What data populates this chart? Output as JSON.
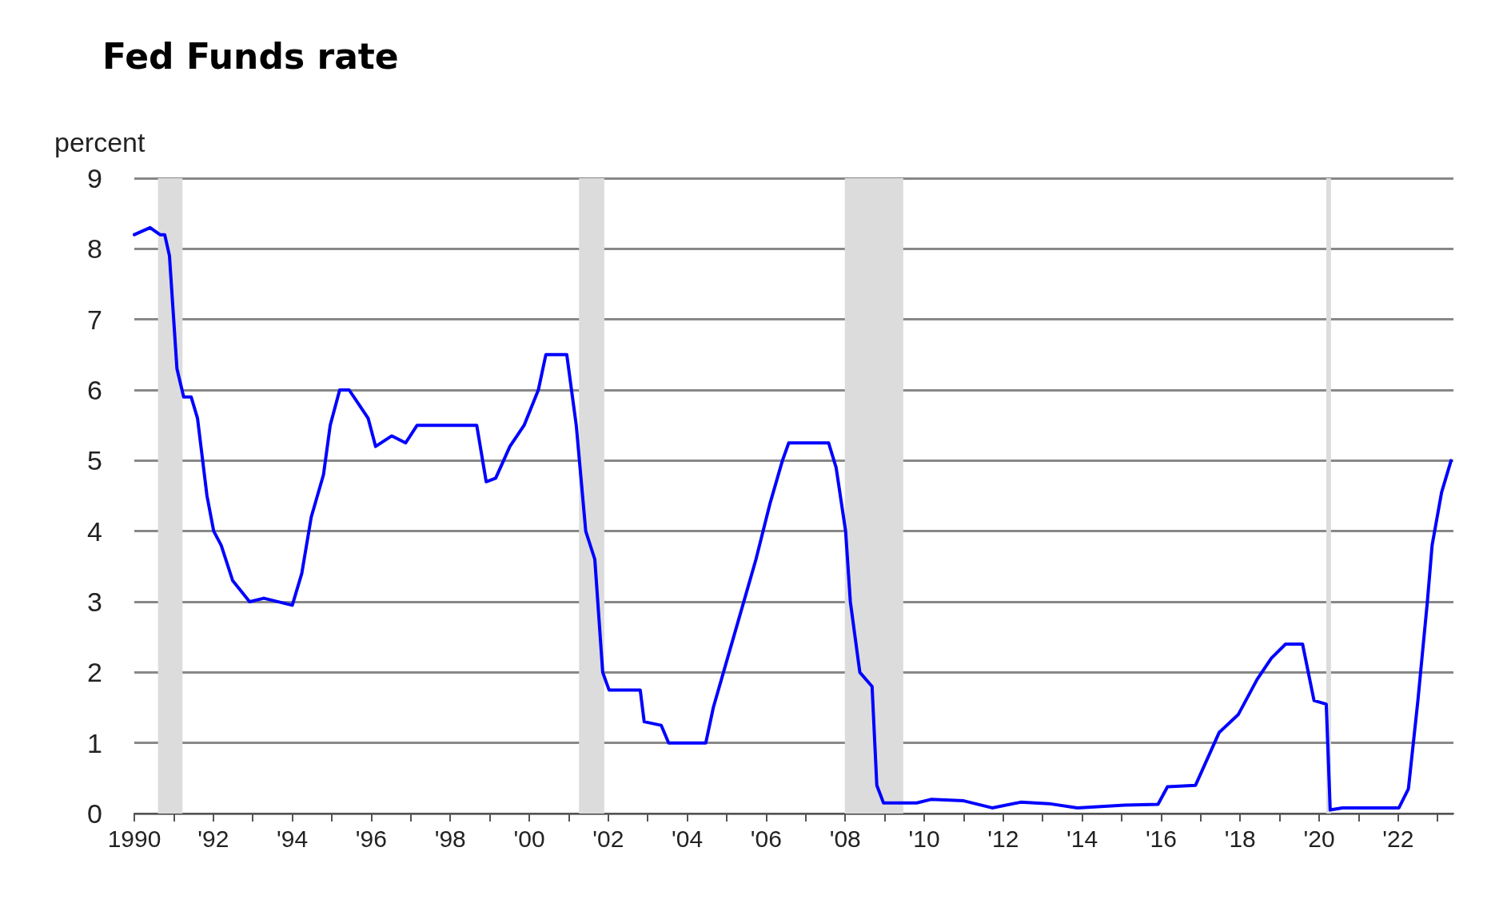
{
  "chart_data": {
    "type": "line",
    "title": "Fed Funds rate",
    "ylabel": "percent",
    "x": [
      1990.0,
      1990.4,
      1990.65,
      1990.77,
      1990.89,
      1991.08,
      1991.25,
      1991.44,
      1991.6,
      1991.84,
      1992.01,
      1992.2,
      1992.49,
      1992.92,
      1993.28,
      1994.0,
      1994.24,
      1994.48,
      1994.79,
      1994.96,
      1995.2,
      1995.44,
      1995.68,
      1995.92,
      1996.11,
      1996.52,
      1996.87,
      1997.16,
      1998.07,
      1998.67,
      1998.91,
      1999.15,
      1999.51,
      1999.87,
      2000.23,
      2000.42,
      2000.95,
      2001.19,
      2001.43,
      2001.66,
      2001.86,
      2002.02,
      2002.81,
      2002.91,
      2003.34,
      2003.53,
      2003.94,
      2004.47,
      2004.66,
      2005.02,
      2005.38,
      2005.74,
      2006.1,
      2006.41,
      2006.57,
      2007.58,
      2007.77,
      2008.01,
      2008.13,
      2008.37,
      2008.68,
      2008.8,
      2008.97,
      2009.81,
      2010.17,
      2011.0,
      2011.72,
      2012.44,
      2013.16,
      2013.88,
      2015.08,
      2015.92,
      2016.16,
      2016.87,
      2017.11,
      2017.47,
      2017.95,
      2018.43,
      2018.79,
      2019.15,
      2019.58,
      2019.87,
      2020.18,
      2020.28,
      2020.59,
      2022.02,
      2022.26,
      2022.5,
      2022.74,
      2022.86,
      2023.1,
      2023.34
    ],
    "series": [
      {
        "color": "#0000ff",
        "values": [
          8.2,
          8.3,
          8.2,
          8.2,
          7.9,
          6.3,
          5.9,
          5.9,
          5.6,
          4.5,
          4.0,
          3.8,
          3.3,
          3.0,
          3.05,
          2.95,
          3.4,
          4.2,
          4.8,
          5.5,
          6.0,
          6.0,
          5.8,
          5.6,
          5.2,
          5.35,
          5.25,
          5.5,
          5.5,
          5.5,
          4.7,
          4.75,
          5.2,
          5.5,
          6.0,
          6.5,
          6.5,
          5.5,
          4.0,
          3.6,
          2.0,
          1.75,
          1.75,
          1.3,
          1.25,
          1.0,
          1.0,
          1.0,
          1.5,
          2.2,
          2.9,
          3.6,
          4.4,
          5.0,
          5.25,
          5.25,
          4.9,
          4.0,
          3.0,
          2.0,
          1.8,
          0.4,
          0.15,
          0.15,
          0.2,
          0.18,
          0.08,
          0.16,
          0.14,
          0.08,
          0.12,
          0.13,
          0.38,
          0.4,
          0.7,
          1.15,
          1.4,
          1.9,
          2.2,
          2.4,
          2.4,
          1.6,
          1.55,
          0.05,
          0.08,
          0.08,
          0.35,
          1.6,
          3.0,
          3.8,
          4.55,
          5.0
        ]
      }
    ],
    "xlim": [
      1990,
      2023.4
    ],
    "xticks": [
      {
        "value": 1990,
        "label": "1990"
      },
      {
        "value": 1991,
        "label": null
      },
      {
        "value": 1992,
        "label": "'92"
      },
      {
        "value": 1993,
        "label": null
      },
      {
        "value": 1994,
        "label": "'94"
      },
      {
        "value": 1995,
        "label": null
      },
      {
        "value": 1996,
        "label": "'96"
      },
      {
        "value": 1997,
        "label": null
      },
      {
        "value": 1998,
        "label": "'98"
      },
      {
        "value": 1999,
        "label": null
      },
      {
        "value": 2000,
        "label": "'00"
      },
      {
        "value": 2001,
        "label": null
      },
      {
        "value": 2002,
        "label": "'02"
      },
      {
        "value": 2003,
        "label": null
      },
      {
        "value": 2004,
        "label": "'04"
      },
      {
        "value": 2005,
        "label": null
      },
      {
        "value": 2006,
        "label": "'06"
      },
      {
        "value": 2007,
        "label": null
      },
      {
        "value": 2008,
        "label": "'08"
      },
      {
        "value": 2009,
        "label": null
      },
      {
        "value": 2010,
        "label": "'10"
      },
      {
        "value": 2011,
        "label": null
      },
      {
        "value": 2012,
        "label": "'12"
      },
      {
        "value": 2013,
        "label": null
      },
      {
        "value": 2014,
        "label": "'14"
      },
      {
        "value": 2015,
        "label": null
      },
      {
        "value": 2016,
        "label": "'16"
      },
      {
        "value": 2017,
        "label": null
      },
      {
        "value": 2018,
        "label": "'18"
      },
      {
        "value": 2019,
        "label": null
      },
      {
        "value": 2020,
        "label": "'20"
      },
      {
        "value": 2021,
        "label": null
      },
      {
        "value": 2022,
        "label": "'22"
      },
      {
        "value": 2023,
        "label": null
      }
    ],
    "ylim": [
      0,
      9
    ],
    "yticks": [
      0,
      1,
      2,
      3,
      4,
      5,
      6,
      7,
      8,
      9
    ],
    "bands": [
      {
        "axis": "x",
        "from": 1990.6,
        "to": 1991.22,
        "color": "#dcdcdc"
      },
      {
        "axis": "x",
        "from": 2001.26,
        "to": 2001.9,
        "color": "#dcdcdc"
      },
      {
        "axis": "x",
        "from": 2007.99,
        "to": 2009.47,
        "color": "#dcdcdc"
      },
      {
        "axis": "x",
        "from": 2020.18,
        "to": 2020.3,
        "color": "#dcdcdc"
      }
    ],
    "grid": "y",
    "marker": "none",
    "line_style": "solid"
  }
}
